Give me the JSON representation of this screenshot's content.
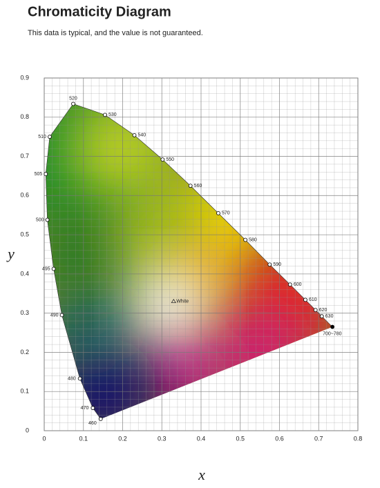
{
  "chart_data": {
    "type": "scatter",
    "title": "Chromaticity Diagram",
    "subtitle": "This data is typical, and the value is not guaranteed.",
    "x_label": "x",
    "y_label": "y",
    "xlim": [
      0,
      0.8
    ],
    "ylim": [
      0,
      0.9
    ],
    "xticks": [
      0,
      0.1,
      0.2,
      0.3,
      0.4,
      0.5,
      0.6,
      0.7,
      0.8
    ],
    "yticks": [
      0,
      0.1,
      0.2,
      0.3,
      0.4,
      0.5,
      0.6,
      0.7,
      0.8,
      0.9
    ],
    "grid": true,
    "minor_divisions": 5,
    "points": [
      {
        "label": "460",
        "x": 0.144,
        "y": 0.03
      },
      {
        "label": "470",
        "x": 0.124,
        "y": 0.058
      },
      {
        "label": "480",
        "x": 0.091,
        "y": 0.133
      },
      {
        "label": "490",
        "x": 0.045,
        "y": 0.295
      },
      {
        "label": "495",
        "x": 0.024,
        "y": 0.413
      },
      {
        "label": "500",
        "x": 0.008,
        "y": 0.538
      },
      {
        "label": "505",
        "x": 0.004,
        "y": 0.655
      },
      {
        "label": "510",
        "x": 0.014,
        "y": 0.75
      },
      {
        "label": "520",
        "x": 0.074,
        "y": 0.834
      },
      {
        "label": "530",
        "x": 0.155,
        "y": 0.806
      },
      {
        "label": "540",
        "x": 0.23,
        "y": 0.754
      },
      {
        "label": "550",
        "x": 0.302,
        "y": 0.692
      },
      {
        "label": "560",
        "x": 0.373,
        "y": 0.625
      },
      {
        "label": "570",
        "x": 0.444,
        "y": 0.555
      },
      {
        "label": "580",
        "x": 0.513,
        "y": 0.487
      },
      {
        "label": "590",
        "x": 0.575,
        "y": 0.424
      },
      {
        "label": "600",
        "x": 0.627,
        "y": 0.373
      },
      {
        "label": "610",
        "x": 0.666,
        "y": 0.334
      },
      {
        "label": "620",
        "x": 0.692,
        "y": 0.308
      },
      {
        "label": "630",
        "x": 0.708,
        "y": 0.292
      },
      {
        "label": "700~780",
        "x": 0.735,
        "y": 0.265
      }
    ],
    "annotation": {
      "text": "White",
      "x": 0.33,
      "y": 0.33
    }
  }
}
